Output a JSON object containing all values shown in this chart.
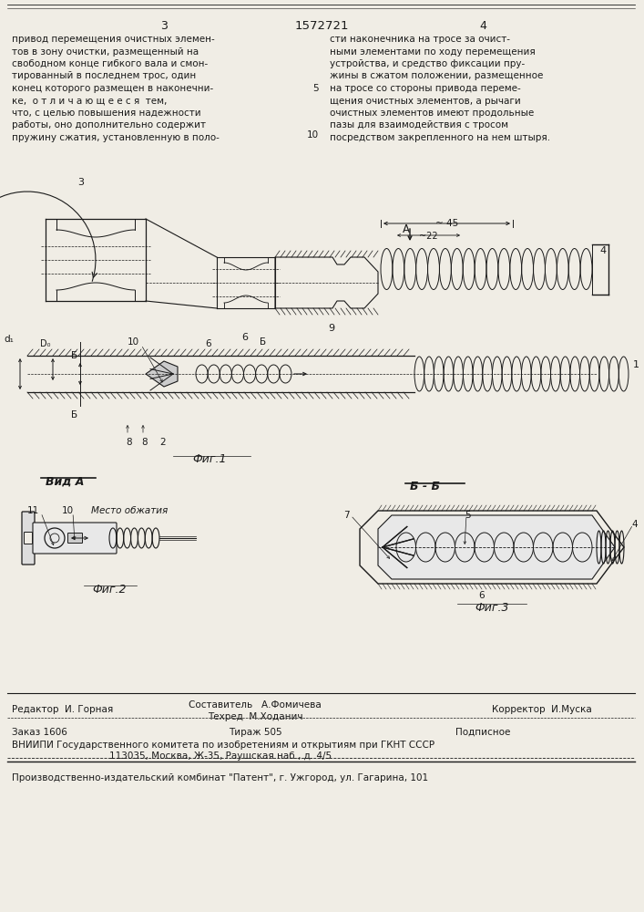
{
  "paper_color": "#f0ede5",
  "ink_color": "#1a1a1a",
  "title_number": "1572721",
  "page_left": "3",
  "page_right": "4",
  "line_number_5": "5",
  "line_number_10": "10",
  "text_left": [
    "привод перемещения очистных элемен-",
    "тов в зону очистки, размещенный на",
    "свободном конце гибкого вала и смон-",
    "тированный в последнем трос, один",
    "конец которого размещен в наконечни-",
    "ке,  о т л и ч а ю щ е е с я  тем,",
    "что, с целью повышения надежности",
    "работы, оно дополнительно содержит",
    "пружину сжатия, установленную в поло-"
  ],
  "text_right": [
    "сти наконечника на тросе за очист-",
    "ными элементами по ходу перемещения",
    "устройства, и средство фиксации пру-",
    "жины в сжатом положении, размещенное",
    "на тросе со стороны привода переме-",
    "щения очистных элементов, а рычаги",
    "очистных элементов имеют продольные",
    "пазы для взаимодействия с тросом",
    "посредством закрепленного на нем штыря."
  ],
  "fig1_caption": "Фиг.1",
  "fig2_caption": "Фиг.2",
  "fig3_caption": "Фиг.3",
  "vid_a": "Вид А",
  "b_b": "Б - Б",
  "dim_45": "~ 45",
  "dim_22": "~22",
  "arrow_A_label": "А",
  "label_d1": "d₁",
  "label_d0": "D₀",
  "editor_row1": "Редактор  И. Горная",
  "compiler_row1": "Составитель   А.Фомичева",
  "techred_row2": "Техред  М.Ходанич",
  "corrector_row2": "Корректор  И.Муска",
  "order_label": "Заказ 1606",
  "circulation_label": "Тираж 505",
  "podpisnoe_label": "Подписное",
  "vniiipi_text": "ВНИИПИ Государственного комитета по изобретениям и открытиям при ГКНТ СССР",
  "address_text": "113035, Москва, Ж-35, Раушская наб., д. 4/5",
  "publisher_text": "Производственно-издательский комбинат \"Патент\", г. Ужгород, ул. Гагарина, 101"
}
